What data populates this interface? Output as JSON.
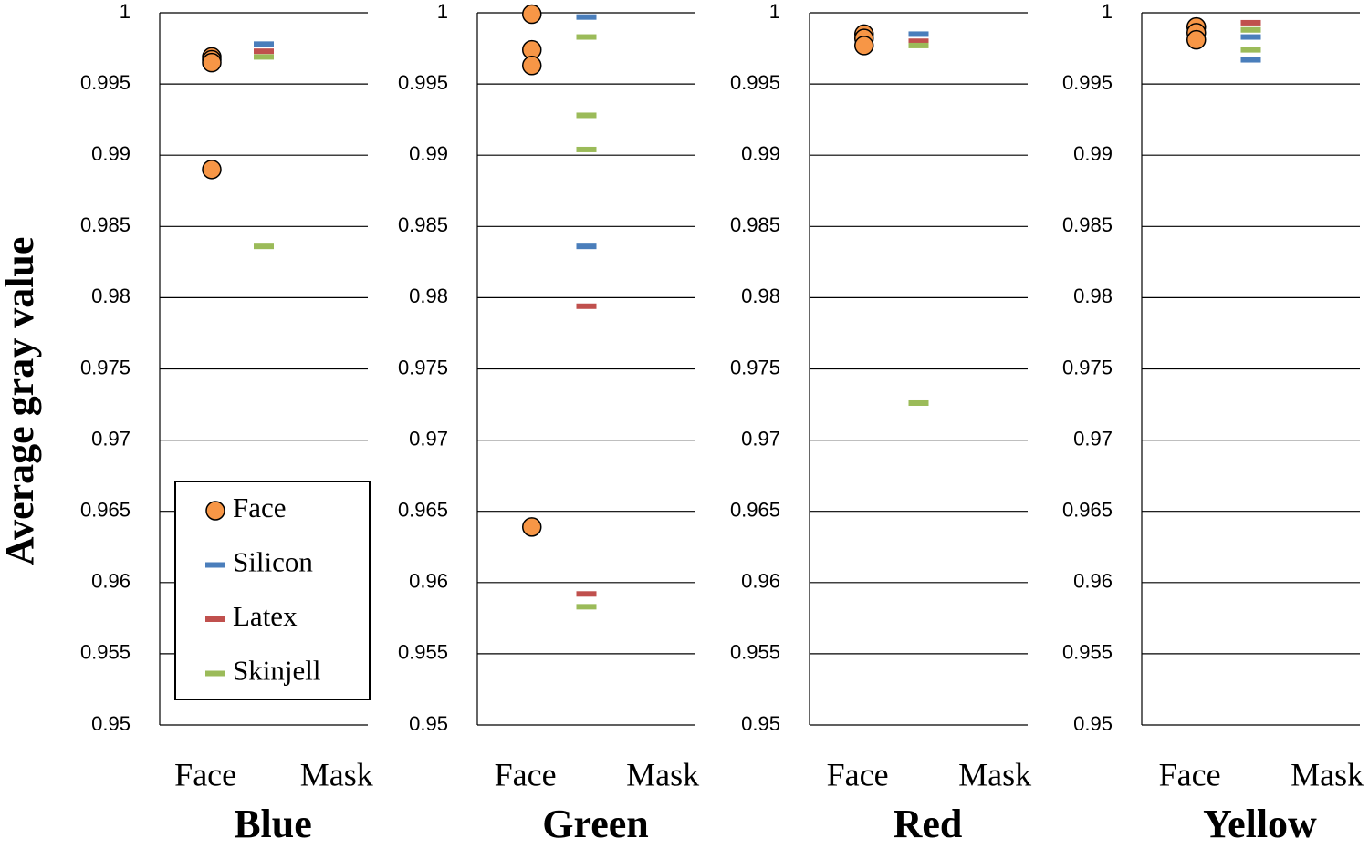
{
  "chart_data": [
    {
      "type": "scatter",
      "title": "Blue",
      "ylabel": "Average gray value",
      "categories": [
        "Face",
        "Mask"
      ],
      "ylim": [
        0.95,
        1
      ],
      "yticks": [
        0.95,
        0.955,
        0.96,
        0.965,
        0.97,
        0.975,
        0.98,
        0.985,
        0.99,
        0.995,
        1
      ],
      "grid": true,
      "legend": "lower-left",
      "series": [
        {
          "name": "Face",
          "color": "#f79646",
          "marker": "circle",
          "values": [
            [
              0.9969,
              0.9967,
              0.9965,
              0.989
            ],
            null
          ]
        },
        {
          "name": "Silicon",
          "color": "#4a7ebb",
          "marker": "dash",
          "values": [
            null,
            [
              0.9978
            ]
          ]
        },
        {
          "name": "Latex",
          "color": "#c0504d",
          "marker": "dash",
          "values": [
            null,
            [
              0.9973
            ]
          ]
        },
        {
          "name": "Skinjell",
          "color": "#9bbb59",
          "marker": "dash",
          "values": [
            null,
            [
              0.9969,
              0.9836
            ]
          ]
        }
      ]
    },
    {
      "type": "scatter",
      "title": "Green",
      "categories": [
        "Face",
        "Mask"
      ],
      "ylim": [
        0.95,
        1
      ],
      "yticks": [
        0.95,
        0.955,
        0.96,
        0.965,
        0.97,
        0.975,
        0.98,
        0.985,
        0.99,
        0.995,
        1
      ],
      "grid": true,
      "series": [
        {
          "color": "#f79646",
          "marker": "circle",
          "values": [
            [
              0.9999,
              0.9974,
              0.9963,
              0.9639
            ],
            null
          ]
        },
        {
          "color": "#4a7ebb",
          "marker": "dash",
          "values": [
            null,
            [
              0.9997,
              0.9836
            ]
          ]
        },
        {
          "color": "#c0504d",
          "marker": "dash",
          "values": [
            null,
            [
              0.9794,
              0.9592
            ]
          ]
        },
        {
          "color": "#9bbb59",
          "marker": "dash",
          "values": [
            null,
            [
              0.9983,
              0.9928,
              0.9904,
              0.9583
            ]
          ]
        }
      ]
    },
    {
      "type": "scatter",
      "title": "Red",
      "categories": [
        "Face",
        "Mask"
      ],
      "ylim": [
        0.95,
        1
      ],
      "yticks": [
        0.95,
        0.955,
        0.96,
        0.965,
        0.97,
        0.975,
        0.98,
        0.985,
        0.99,
        0.995,
        1
      ],
      "grid": true,
      "series": [
        {
          "color": "#f79646",
          "marker": "circle",
          "values": [
            [
              0.9985,
              0.9982,
              0.9977
            ],
            null
          ]
        },
        {
          "color": "#4a7ebb",
          "marker": "dash",
          "values": [
            null,
            [
              0.9985
            ]
          ]
        },
        {
          "color": "#c0504d",
          "marker": "dash",
          "values": [
            null,
            [
              0.998
            ]
          ]
        },
        {
          "color": "#9bbb59",
          "marker": "dash",
          "values": [
            null,
            [
              0.9977,
              0.9726
            ]
          ]
        }
      ]
    },
    {
      "type": "scatter",
      "title": "Yellow",
      "categories": [
        "Face",
        "Mask"
      ],
      "ylim": [
        0.95,
        1
      ],
      "yticks": [
        0.95,
        0.955,
        0.96,
        0.965,
        0.97,
        0.975,
        0.98,
        0.985,
        0.99,
        0.995,
        1
      ],
      "grid": true,
      "series": [
        {
          "color": "#f79646",
          "marker": "circle",
          "values": [
            [
              0.999,
              0.9986,
              0.9981
            ],
            null
          ]
        },
        {
          "color": "#4a7ebb",
          "marker": "dash",
          "values": [
            null,
            [
              0.9983,
              0.9967
            ]
          ]
        },
        {
          "color": "#c0504d",
          "marker": "dash",
          "values": [
            null,
            [
              0.9993
            ]
          ]
        },
        {
          "color": "#9bbb59",
          "marker": "dash",
          "values": [
            null,
            [
              0.9988,
              0.9974
            ]
          ]
        }
      ]
    }
  ]
}
